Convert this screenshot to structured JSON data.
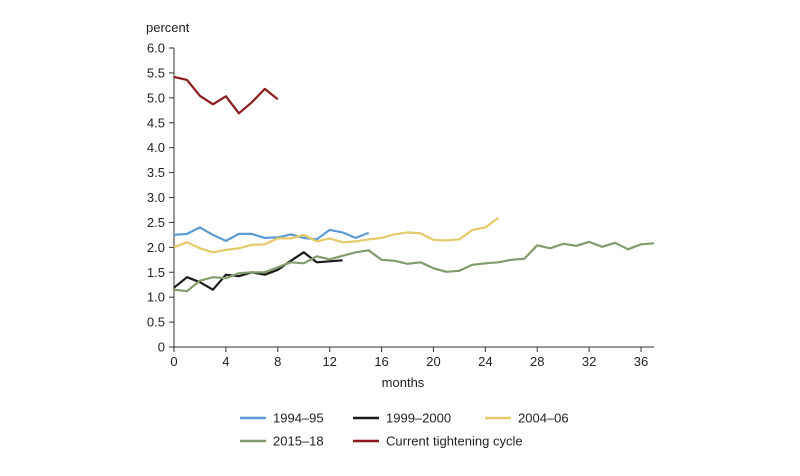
{
  "chart_data": {
    "type": "line",
    "ylabel": "percent",
    "xlabel": "months",
    "xlim": [
      0,
      37
    ],
    "ylim": [
      0,
      6.0
    ],
    "xticks": [
      0,
      4,
      8,
      12,
      16,
      20,
      24,
      28,
      32,
      36
    ],
    "yticks": [
      0,
      0.5,
      1.0,
      1.5,
      2.0,
      2.5,
      3.0,
      3.5,
      4.0,
      4.5,
      5.0,
      5.5,
      6.0
    ],
    "ytick_labels": [
      "0",
      "0.5",
      "1.0",
      "1.5",
      "2.0",
      "2.5",
      "3.0",
      "3.5",
      "4.0",
      "4.5",
      "5.0",
      "5.5",
      "6.0"
    ],
    "grid": false,
    "legend_position": "bottom",
    "series": [
      {
        "name": "1994–95",
        "color": "#5b9bd5",
        "x": [
          0,
          1,
          2,
          3,
          4,
          5,
          6,
          7,
          8,
          9,
          10,
          11,
          12,
          13,
          14,
          15
        ],
        "y": [
          2.25,
          2.27,
          2.4,
          2.25,
          2.13,
          2.27,
          2.27,
          2.19,
          2.2,
          2.26,
          2.19,
          2.16,
          2.35,
          2.3,
          2.19,
          2.29
        ]
      },
      {
        "name": "1999–2000",
        "color": "#1a1a1a",
        "x": [
          0,
          1,
          2,
          3,
          4,
          5,
          6,
          7,
          8,
          9,
          10,
          11,
          12,
          13
        ],
        "y": [
          1.19,
          1.4,
          1.3,
          1.15,
          1.45,
          1.42,
          1.5,
          1.45,
          1.55,
          1.73,
          1.9,
          1.7,
          1.72,
          1.74
        ]
      },
      {
        "name": "2004–06",
        "color": "#e8c96a",
        "x": [
          0,
          1,
          2,
          3,
          4,
          5,
          6,
          7,
          8,
          9,
          10,
          11,
          12,
          13,
          14,
          15,
          16,
          17,
          18,
          19,
          20,
          21,
          22,
          23,
          24,
          25
        ],
        "y": [
          2.0,
          2.1,
          1.98,
          1.9,
          1.95,
          1.98,
          2.05,
          2.06,
          2.18,
          2.18,
          2.25,
          2.12,
          2.18,
          2.1,
          2.12,
          2.16,
          2.19,
          2.26,
          2.3,
          2.28,
          2.15,
          2.14,
          2.16,
          2.35,
          2.4,
          2.59
        ]
      },
      {
        "name": "2015–18",
        "color": "#7f9c6a",
        "x": [
          0,
          1,
          2,
          3,
          4,
          5,
          6,
          7,
          8,
          9,
          10,
          11,
          12,
          13,
          14,
          15,
          16,
          17,
          18,
          19,
          20,
          21,
          22,
          23,
          24,
          25,
          26,
          27,
          28,
          29,
          30,
          31,
          32,
          33,
          34,
          35,
          36,
          37
        ],
        "y": [
          1.15,
          1.12,
          1.33,
          1.4,
          1.38,
          1.48,
          1.5,
          1.5,
          1.6,
          1.7,
          1.68,
          1.82,
          1.76,
          1.83,
          1.9,
          1.94,
          1.75,
          1.73,
          1.67,
          1.7,
          1.58,
          1.51,
          1.53,
          1.65,
          1.68,
          1.7,
          1.75,
          1.77,
          2.04,
          1.98,
          2.07,
          2.03,
          2.11,
          2.01,
          2.09,
          1.96,
          2.06,
          2.08
        ]
      },
      {
        "name": "Current tightening cycle",
        "color": "#8b1a1a",
        "x": [
          0,
          1,
          2,
          3,
          4,
          5,
          6,
          7,
          8
        ],
        "y": [
          5.42,
          5.36,
          5.04,
          4.87,
          5.03,
          4.69,
          4.91,
          5.18,
          4.97
        ]
      }
    ]
  }
}
